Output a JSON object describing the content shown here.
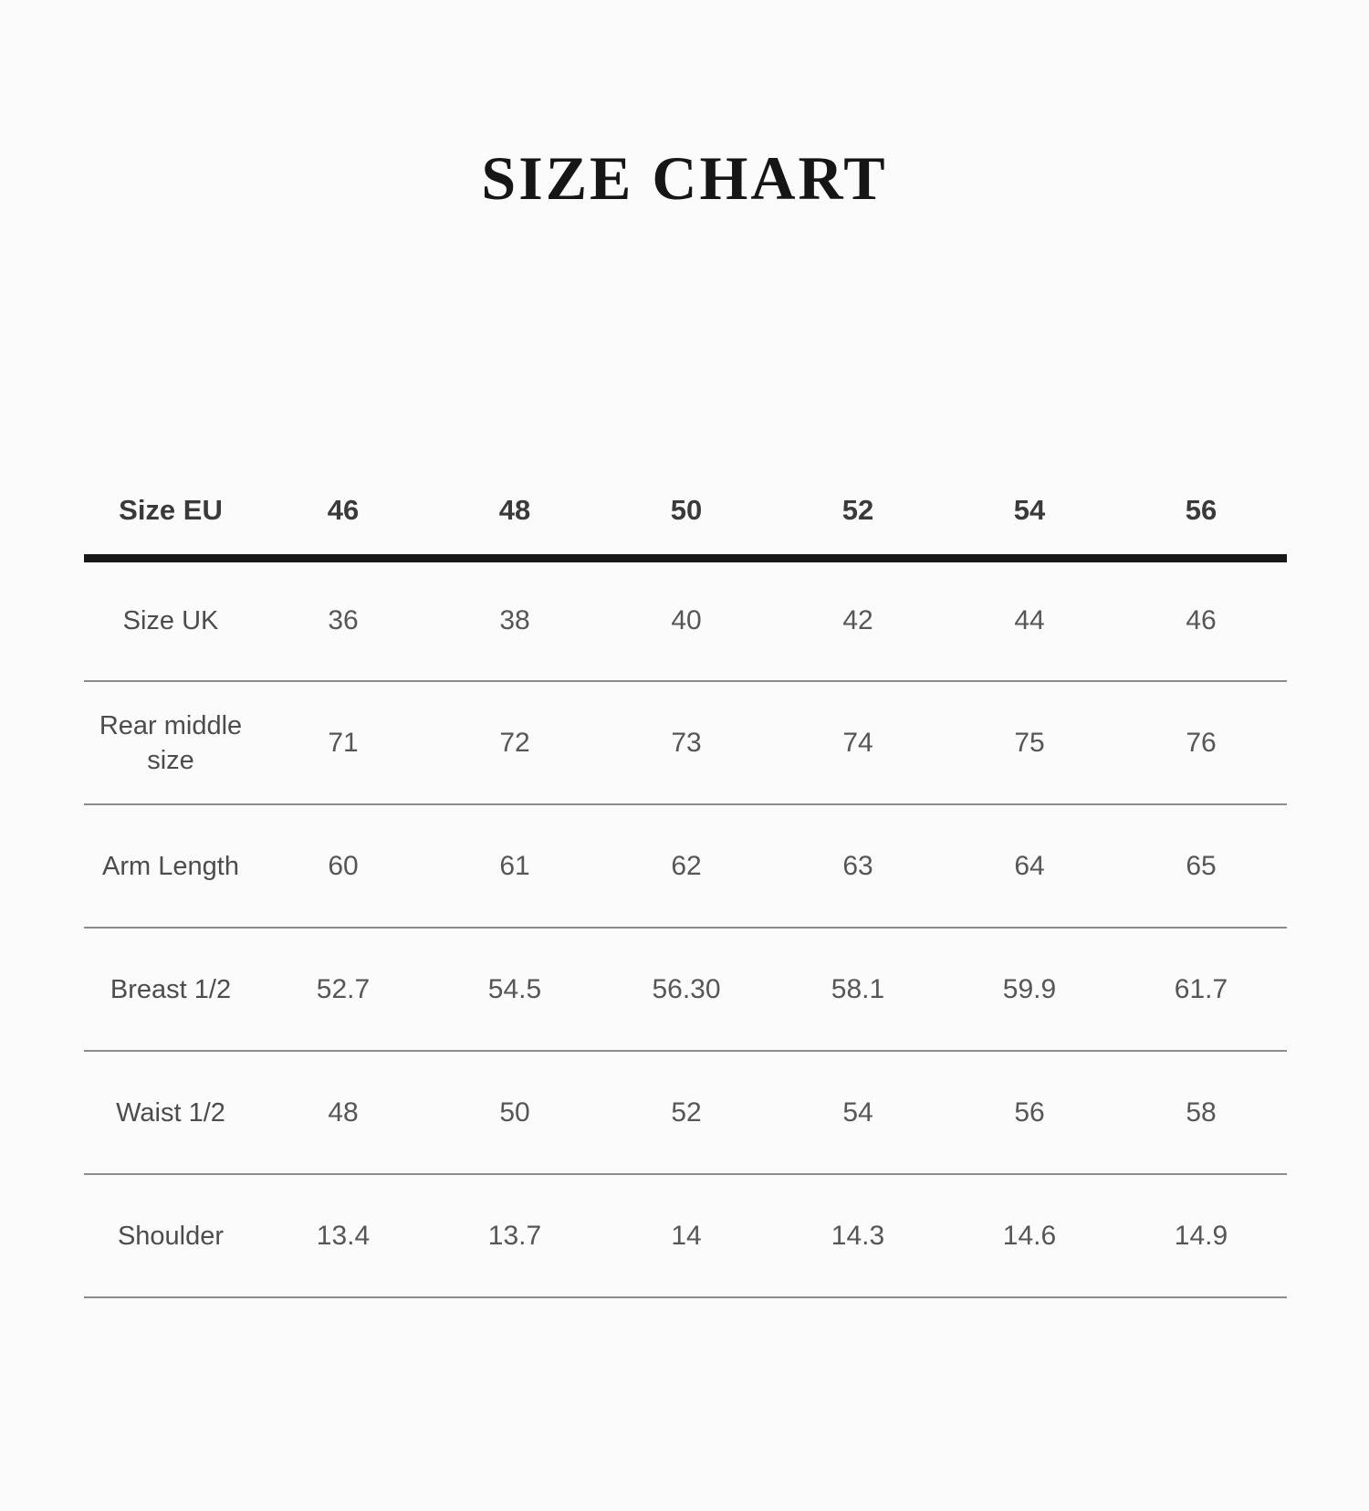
{
  "chart_data": {
    "type": "table",
    "title": "SIZE CHART",
    "columns": [
      "Size EU",
      "46",
      "48",
      "50",
      "52",
      "54",
      "56"
    ],
    "rows": [
      [
        "Size UK",
        "36",
        "38",
        "40",
        "42",
        "44",
        "46"
      ],
      [
        "Rear middle size",
        "71",
        "72",
        "73",
        "74",
        "75",
        "76"
      ],
      [
        "Arm Length",
        "60",
        "61",
        "62",
        "63",
        "64",
        "65"
      ],
      [
        "Breast 1/2",
        "52.7",
        "54.5",
        "56.30",
        "58.1",
        "59.9",
        "61.7"
      ],
      [
        "Waist 1/2",
        "48",
        "50",
        "52",
        "54",
        "56",
        "58"
      ],
      [
        "Shoulder",
        "13.4",
        "13.7",
        "14",
        "14.3",
        "14.6",
        "14.9"
      ]
    ],
    "layout": {
      "grid": "horizontal-dividers-only",
      "header_rule_color": "#181818",
      "divider_color": "#8c8c8c"
    }
  }
}
